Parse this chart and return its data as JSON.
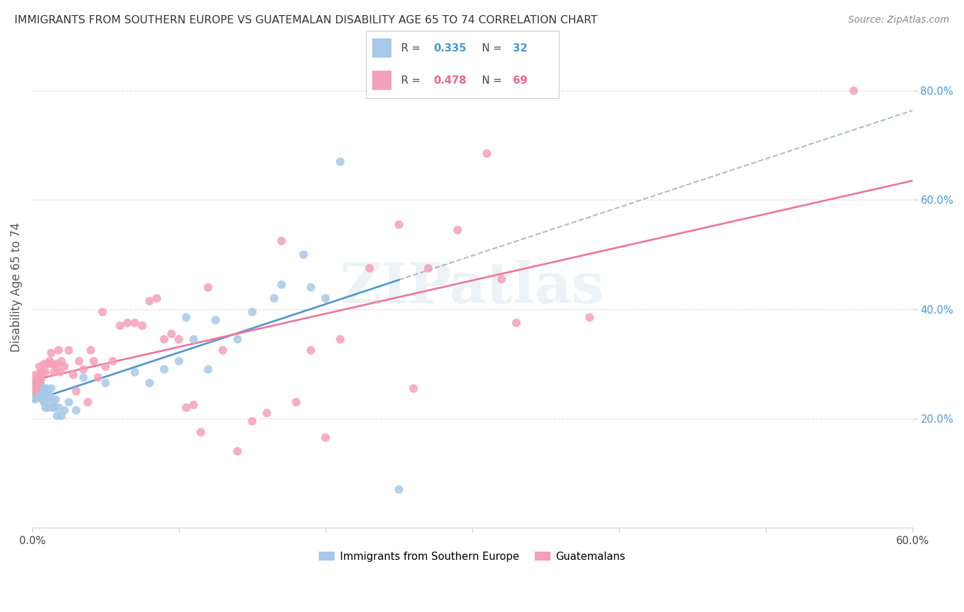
{
  "title": "IMMIGRANTS FROM SOUTHERN EUROPE VS GUATEMALAN DISABILITY AGE 65 TO 74 CORRELATION CHART",
  "source": "Source: ZipAtlas.com",
  "ylabel": "Disability Age 65 to 74",
  "xlim": [
    0.0,
    0.6
  ],
  "ylim": [
    0.0,
    0.88
  ],
  "color_blue": "#a8c8e8",
  "color_pink": "#f4a0b8",
  "color_blue_text": "#4499dd",
  "color_pink_text": "#ee6688",
  "color_line_blue_solid": "#5599cc",
  "color_line_blue_dash": "#aabbcc",
  "color_line_pink": "#ee7799",
  "watermark_text": "ZIPatlas",
  "blue_x": [
    0.001,
    0.002,
    0.002,
    0.003,
    0.003,
    0.004,
    0.004,
    0.005,
    0.005,
    0.006,
    0.006,
    0.007,
    0.007,
    0.008,
    0.008,
    0.009,
    0.009,
    0.01,
    0.01,
    0.011,
    0.011,
    0.012,
    0.013,
    0.014,
    0.014,
    0.015,
    0.016,
    0.017,
    0.018,
    0.02,
    0.022,
    0.025,
    0.03,
    0.035,
    0.05,
    0.07,
    0.08,
    0.09,
    0.1,
    0.105,
    0.11,
    0.12,
    0.125,
    0.14,
    0.15,
    0.165,
    0.17,
    0.185,
    0.19,
    0.2,
    0.21,
    0.25
  ],
  "blue_y": [
    0.245,
    0.235,
    0.255,
    0.24,
    0.265,
    0.26,
    0.245,
    0.255,
    0.27,
    0.245,
    0.26,
    0.235,
    0.25,
    0.255,
    0.23,
    0.24,
    0.22,
    0.255,
    0.235,
    0.22,
    0.245,
    0.24,
    0.255,
    0.22,
    0.23,
    0.22,
    0.235,
    0.205,
    0.22,
    0.205,
    0.215,
    0.23,
    0.215,
    0.275,
    0.265,
    0.285,
    0.265,
    0.29,
    0.305,
    0.385,
    0.345,
    0.29,
    0.38,
    0.345,
    0.395,
    0.42,
    0.445,
    0.5,
    0.44,
    0.42,
    0.67,
    0.07
  ],
  "pink_x": [
    0.001,
    0.002,
    0.002,
    0.003,
    0.003,
    0.004,
    0.005,
    0.005,
    0.006,
    0.006,
    0.007,
    0.008,
    0.009,
    0.01,
    0.011,
    0.012,
    0.013,
    0.014,
    0.015,
    0.016,
    0.017,
    0.018,
    0.019,
    0.02,
    0.022,
    0.025,
    0.028,
    0.03,
    0.032,
    0.035,
    0.038,
    0.04,
    0.042,
    0.045,
    0.048,
    0.05,
    0.055,
    0.06,
    0.065,
    0.07,
    0.075,
    0.08,
    0.085,
    0.09,
    0.095,
    0.1,
    0.105,
    0.11,
    0.115,
    0.12,
    0.13,
    0.14,
    0.15,
    0.16,
    0.17,
    0.18,
    0.19,
    0.2,
    0.21,
    0.23,
    0.25,
    0.26,
    0.27,
    0.29,
    0.31,
    0.32,
    0.33,
    0.38,
    0.56
  ],
  "pink_y": [
    0.25,
    0.28,
    0.265,
    0.255,
    0.27,
    0.265,
    0.275,
    0.295,
    0.27,
    0.285,
    0.285,
    0.3,
    0.285,
    0.3,
    0.3,
    0.305,
    0.32,
    0.3,
    0.285,
    0.295,
    0.3,
    0.325,
    0.285,
    0.305,
    0.295,
    0.325,
    0.28,
    0.25,
    0.305,
    0.29,
    0.23,
    0.325,
    0.305,
    0.275,
    0.395,
    0.295,
    0.305,
    0.37,
    0.375,
    0.375,
    0.37,
    0.415,
    0.42,
    0.345,
    0.355,
    0.345,
    0.22,
    0.225,
    0.175,
    0.44,
    0.325,
    0.14,
    0.195,
    0.21,
    0.525,
    0.23,
    0.325,
    0.165,
    0.345,
    0.475,
    0.555,
    0.255,
    0.475,
    0.545,
    0.685,
    0.455,
    0.375,
    0.385,
    0.8
  ]
}
